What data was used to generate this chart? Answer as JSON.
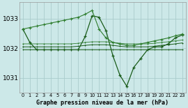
{
  "title": "Graphe pression niveau de la mer (hPa)",
  "bg_color": "#cce8e8",
  "grid_color": "#aacccc",
  "line_color_dark": "#1a5c1a",
  "line_color_mid": "#2e7d2e",
  "xlim": [
    -0.5,
    23.5
  ],
  "ylim": [
    1030.5,
    1033.55
  ],
  "yticks": [
    1031,
    1032,
    1033
  ],
  "xticks": [
    0,
    1,
    2,
    3,
    4,
    5,
    6,
    7,
    8,
    9,
    10,
    11,
    12,
    13,
    14,
    15,
    16,
    17,
    18,
    19,
    20,
    21,
    22,
    23
  ],
  "hours": [
    0,
    1,
    2,
    3,
    4,
    5,
    6,
    7,
    8,
    9,
    10,
    11,
    12,
    13,
    14,
    15,
    16,
    17,
    18,
    19,
    20,
    21,
    22,
    23
  ],
  "series_spike": [
    1032.65,
    1032.2,
    1031.95,
    1031.95,
    1031.95,
    1031.95,
    1031.95,
    1031.95,
    1031.95,
    1032.4,
    1033.1,
    1033.05,
    1032.6,
    1031.75,
    1031.1,
    1030.72,
    1031.35,
    1031.65,
    1031.95,
    1032.05,
    1032.05,
    1032.15,
    1032.35,
    1032.45
  ],
  "series_rise": [
    1032.65,
    1032.7,
    1032.75,
    1032.8,
    1032.85,
    1032.9,
    1032.95,
    1033.0,
    1033.05,
    1033.15,
    1033.28,
    1032.65,
    1032.35,
    1032.2,
    1032.15,
    1032.1,
    1032.1,
    1032.15,
    1032.2,
    1032.25,
    1032.3,
    1032.35,
    1032.42,
    1032.48
  ],
  "series_flat_low": [
    1031.95,
    1031.95,
    1031.95,
    1031.95,
    1031.95,
    1031.95,
    1031.95,
    1031.95,
    1031.95,
    1031.95,
    1031.95,
    1031.95,
    1031.95,
    1031.95,
    1031.95,
    1031.95,
    1031.95,
    1031.95,
    1031.95,
    1031.95,
    1031.95,
    1031.95,
    1031.95,
    1031.95
  ],
  "series_flat_mid": [
    1032.05,
    1032.05,
    1032.05,
    1032.05,
    1032.05,
    1032.05,
    1032.05,
    1032.05,
    1032.07,
    1032.1,
    1032.12,
    1032.12,
    1032.12,
    1032.1,
    1032.07,
    1032.05,
    1032.05,
    1032.05,
    1032.05,
    1032.07,
    1032.1,
    1032.12,
    1032.15,
    1032.18
  ],
  "series_flat_hi": [
    1032.15,
    1032.15,
    1032.15,
    1032.15,
    1032.15,
    1032.15,
    1032.15,
    1032.15,
    1032.17,
    1032.2,
    1032.22,
    1032.22,
    1032.22,
    1032.2,
    1032.17,
    1032.15,
    1032.15,
    1032.15,
    1032.15,
    1032.17,
    1032.2,
    1032.22,
    1032.25,
    1032.28
  ]
}
